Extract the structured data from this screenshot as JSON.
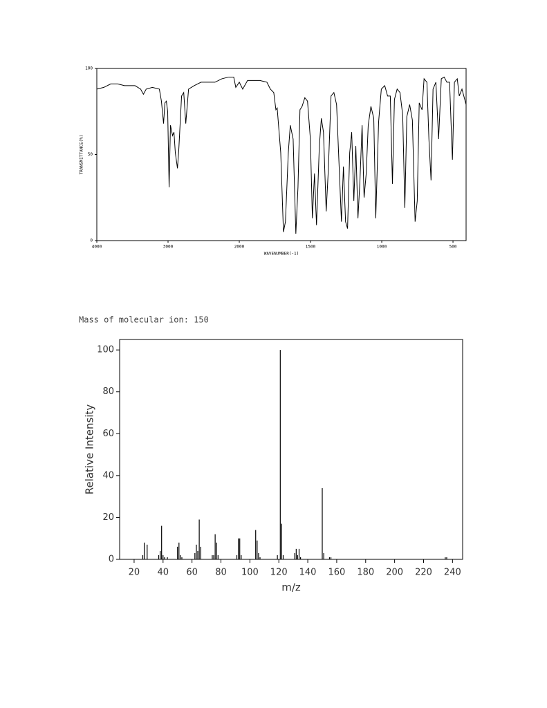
{
  "chart_data": [
    {
      "type": "line",
      "xscale": "piecewise",
      "ylabel": "TRANSMITTANCE(%)",
      "xlabel": "WAVENUMBER(-1)",
      "xlim": [
        4000,
        408
      ],
      "xticks": [
        4000,
        3000,
        2000,
        1500,
        1000,
        500
      ],
      "ylim": [
        0,
        100
      ],
      "yticks": [
        0,
        50,
        100
      ],
      "color": "#000000",
      "x": [
        4000,
        3902,
        3805,
        3707,
        3610,
        3463,
        3385,
        3346,
        3307,
        3220,
        3122,
        3093,
        3063,
        3044,
        3024,
        3005,
        2985,
        2966,
        2937,
        2917,
        2898,
        2868,
        2849,
        2810,
        2780,
        2751,
        2712,
        2634,
        2537,
        2439,
        2341,
        2244,
        2146,
        2078,
        2049,
        2000,
        1976,
        1942,
        1903,
        1855,
        1806,
        1782,
        1758,
        1743,
        1734,
        1709,
        1690,
        1676,
        1656,
        1642,
        1622,
        1603,
        1588,
        1574,
        1559,
        1540,
        1521,
        1501,
        1487,
        1472,
        1458,
        1438,
        1424,
        1409,
        1390,
        1375,
        1356,
        1336,
        1317,
        1298,
        1283,
        1269,
        1254,
        1240,
        1225,
        1211,
        1196,
        1182,
        1167,
        1153,
        1138,
        1124,
        1109,
        1095,
        1076,
        1056,
        1042,
        1022,
        1003,
        979,
        959,
        940,
        925,
        911,
        892,
        872,
        853,
        838,
        824,
        804,
        785,
        766,
        751,
        737,
        717,
        703,
        683,
        669,
        654,
        640,
        620,
        601,
        582,
        562,
        543,
        524,
        504,
        490,
        470,
        456,
        437,
        408
      ],
      "values": [
        88,
        89,
        91,
        91,
        90,
        90,
        88,
        85,
        88,
        89,
        88,
        81,
        68,
        80,
        81,
        75,
        31,
        67,
        61,
        63,
        51,
        42,
        53,
        84,
        86,
        68,
        88,
        90,
        92,
        92,
        92,
        94,
        95,
        95,
        89,
        92,
        88,
        93,
        93,
        93,
        92,
        88,
        86,
        76,
        77,
        51,
        5,
        11,
        51,
        67,
        59,
        4,
        31,
        76,
        78,
        83,
        81,
        59,
        13,
        39,
        9,
        55,
        71,
        63,
        17,
        41,
        84,
        86,
        79,
        41,
        11,
        43,
        11,
        7,
        51,
        63,
        23,
        55,
        13,
        35,
        67,
        25,
        39,
        67,
        78,
        71,
        13,
        69,
        88,
        90,
        84,
        84,
        33,
        82,
        88,
        86,
        73,
        19,
        72,
        79,
        70,
        11,
        23,
        80,
        76,
        94,
        92,
        59,
        35,
        88,
        92,
        59,
        94,
        95,
        92,
        92,
        47,
        92,
        94,
        84,
        88,
        79
      ]
    },
    {
      "type": "bar",
      "title": "Mass of molecular ion: 150",
      "xlabel": "m/z",
      "ylabel": "Relative Intensity",
      "xlim": [
        10,
        247
      ],
      "xticks": [
        20,
        40,
        60,
        80,
        100,
        120,
        140,
        160,
        180,
        200,
        220,
        240
      ],
      "ylim": [
        0,
        105
      ],
      "yticks": [
        0,
        20,
        40,
        60,
        80,
        100
      ],
      "color": "#000000",
      "x": [
        26,
        27,
        29,
        37,
        38,
        39,
        40,
        41,
        43,
        50,
        51,
        52,
        53,
        62,
        63,
        64,
        65,
        66,
        74,
        75,
        76,
        77,
        78,
        91,
        92,
        93,
        94,
        104,
        105,
        106,
        107,
        119,
        121,
        122,
        123,
        131,
        132,
        133,
        134,
        135,
        150,
        151,
        155,
        156,
        235,
        236
      ],
      "values": [
        2,
        8,
        7,
        2,
        4,
        16,
        2,
        1,
        1,
        6,
        8,
        2,
        1,
        3,
        7,
        4,
        19,
        6,
        2,
        2,
        12,
        8,
        2,
        2,
        10,
        10,
        2,
        14,
        9,
        3,
        1,
        2,
        100,
        17,
        2,
        3,
        5,
        2,
        5,
        1,
        34,
        3,
        1,
        1,
        1,
        1
      ]
    }
  ]
}
